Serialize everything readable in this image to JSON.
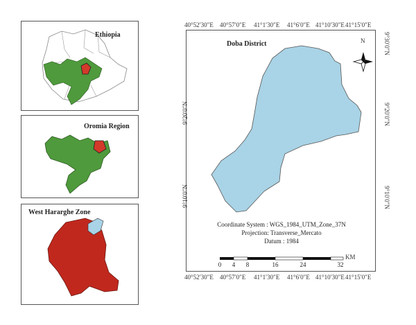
{
  "insets": [
    {
      "title": "Ethiopia"
    },
    {
      "title": "Oromia Region"
    },
    {
      "title": "West Hararghe Zone"
    }
  ],
  "main_map": {
    "title": "Doba District",
    "top_coords": [
      "40°52′30″E",
      "40°57′0″E",
      "41°1′30″E",
      "41°6′0″E",
      "41°10′30″E",
      "41°15′0″E"
    ],
    "bottom_coords": [
      "40°52′30″E",
      "40°57′0″E",
      "41°1′30″E",
      "41°6′0″E",
      "41°10′30″E",
      "41°15′0″E"
    ],
    "left_coords": [
      "9°20′0″N",
      "9°10′0″N"
    ],
    "right_coords": [
      "9°30′0″N",
      "9°20′0″N",
      "9°10′0″N"
    ],
    "north_label": "N",
    "info": {
      "coordinate_system": "Coordinate System : WGS_1984_UTM_Zone_37N",
      "projection": "Projection: Transverse_Mercato",
      "datum": "Datum : 1984"
    },
    "scale": {
      "unit": "KM",
      "ticks": [
        "0",
        "4",
        "8",
        "16",
        "24",
        "32"
      ]
    }
  },
  "colors": {
    "district_fill": "#a9d3e6",
    "oromia_fill": "#4f9a3c",
    "highlight_fill": "#d23a2a",
    "zone_fill": "#c1281d"
  }
}
